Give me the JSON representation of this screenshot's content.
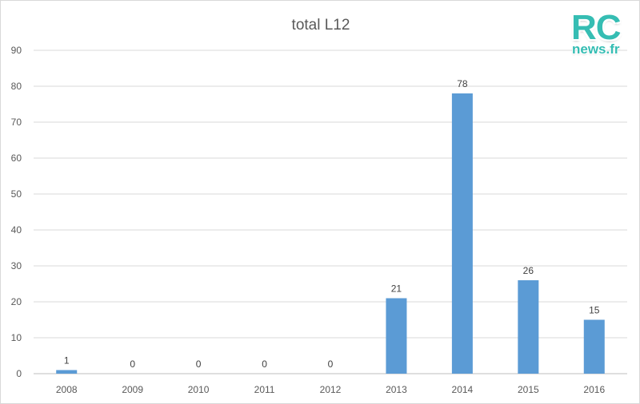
{
  "chart_data": {
    "type": "bar",
    "title": "total L12",
    "categories": [
      "2008",
      "2009",
      "2010",
      "2011",
      "2012",
      "2013",
      "2014",
      "2015",
      "2016"
    ],
    "values": [
      1,
      0,
      0,
      0,
      0,
      21,
      78,
      26,
      15
    ],
    "ylim": [
      0,
      90
    ],
    "yticks": [
      "0",
      "10",
      "20",
      "30",
      "40",
      "50",
      "60",
      "70",
      "80",
      "90"
    ],
    "grid": true,
    "bar_color": "#5b9bd5",
    "data_labels": true
  },
  "logo": {
    "line1": "RC",
    "line2": "news.fr",
    "color": "#35bdb3"
  }
}
